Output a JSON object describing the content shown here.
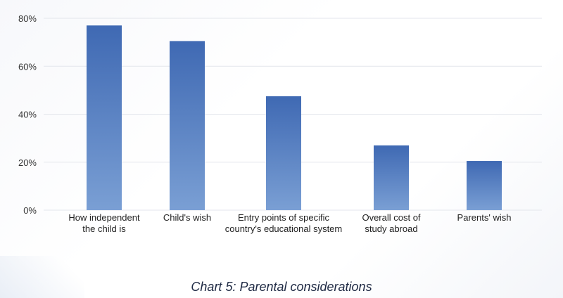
{
  "chart_data": {
    "type": "bar",
    "title": "",
    "xlabel": "",
    "ylabel": "",
    "categories": [
      [
        "How independent",
        "the child is"
      ],
      [
        "Child's wish"
      ],
      [
        "Entry points of specific",
        "country's educational system"
      ],
      [
        "Overall cost of",
        "study abroad"
      ],
      [
        "Parents' wish"
      ]
    ],
    "values": [
      77,
      70.5,
      47.5,
      27,
      20.5
    ],
    "ylim": [
      0,
      80
    ],
    "yticks": [
      0,
      20,
      40,
      60,
      80
    ],
    "ytick_labels": [
      "0%",
      "20%",
      "40%",
      "60%",
      "80%"
    ],
    "grid": true,
    "bar_gradient": [
      "#3f69b3",
      "#7a9fd4"
    ]
  },
  "caption": "Chart 5: Parental considerations"
}
